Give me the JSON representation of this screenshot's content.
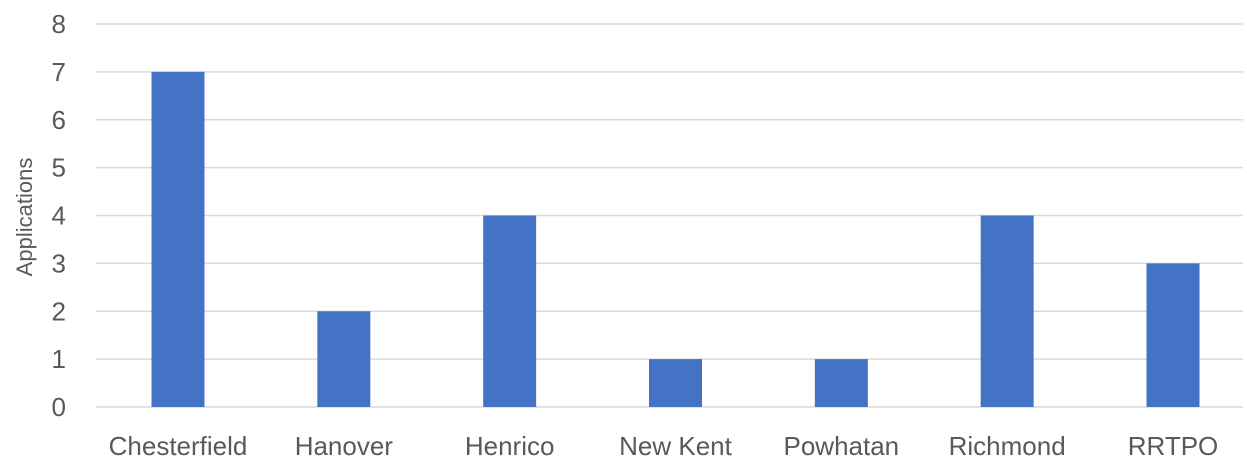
{
  "chart_data": {
    "type": "bar",
    "title": "",
    "xlabel": "",
    "ylabel": "Applications",
    "categories": [
      "Chesterfield",
      "Hanover",
      "Henrico",
      "New Kent",
      "Powhatan",
      "Richmond",
      "RRTPO"
    ],
    "values": [
      7,
      2,
      4,
      1,
      1,
      4,
      3
    ],
    "ylim": [
      0,
      8
    ],
    "yticks": [
      "0",
      "1",
      "2",
      "3",
      "4",
      "5",
      "6",
      "7",
      "8"
    ],
    "grid": true,
    "legend": "none",
    "bar_color": "#4472C4",
    "grid_color": "#d9d9d9",
    "text_color": "#595959"
  }
}
